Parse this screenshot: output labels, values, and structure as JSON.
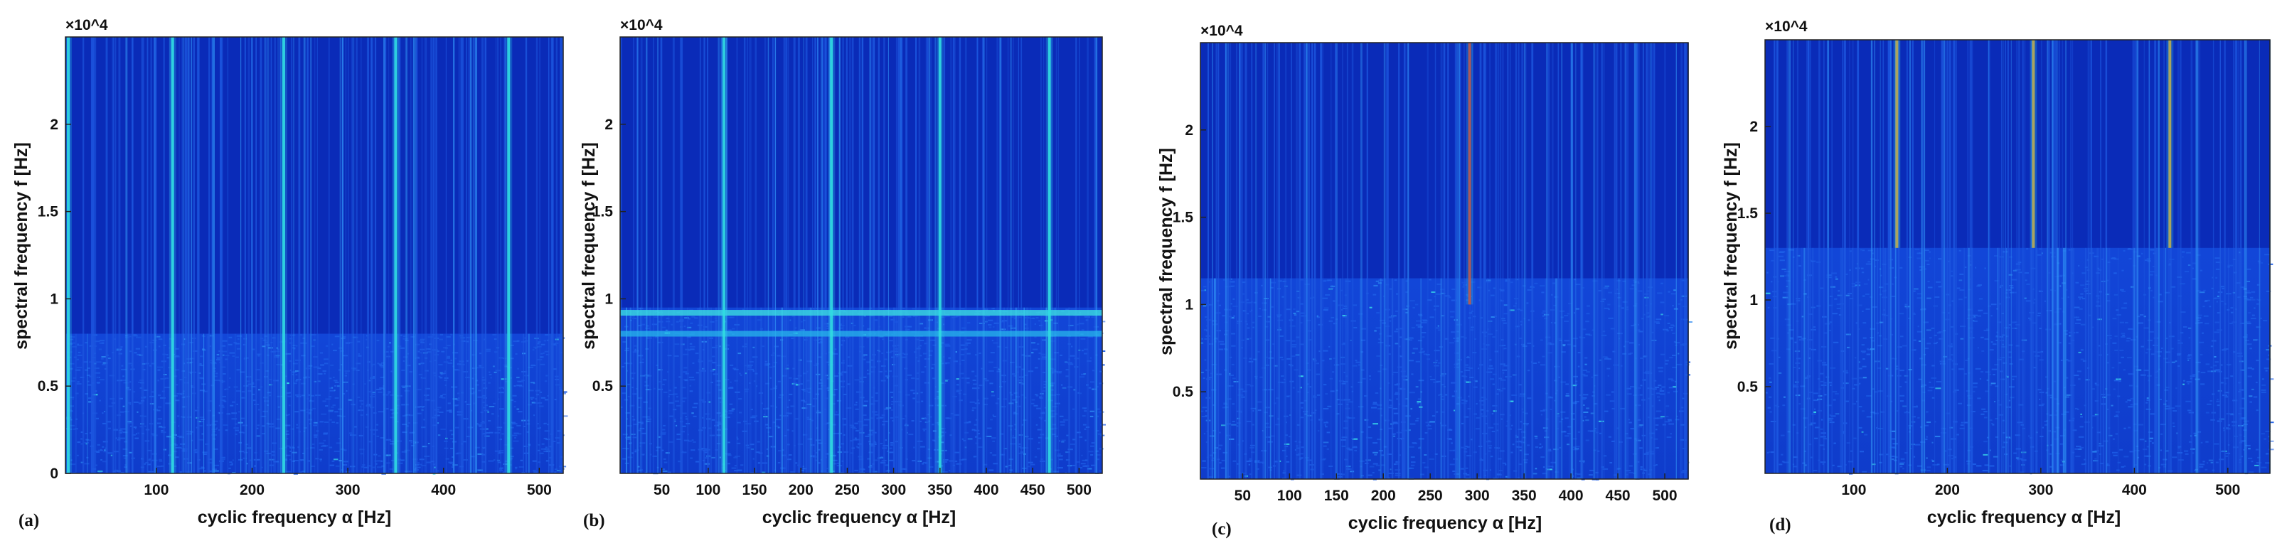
{
  "chart_data": [
    {
      "type": "heatmap",
      "panel_label": "(a)",
      "xlabel": "cyclic frequency α [Hz]",
      "ylabel": "spectral frequency f [Hz]",
      "y_exponent": "×10^4",
      "xlim": [
        5,
        525
      ],
      "ylim": [
        0,
        25000
      ],
      "xticks": [
        100,
        200,
        300,
        400,
        500
      ],
      "xtick_labels": [
        "100",
        "200",
        "300",
        "400",
        "500"
      ],
      "yticks": [
        0,
        5000,
        10000,
        15000,
        20000
      ],
      "ytick_labels": [
        "0",
        "0.5",
        "1",
        "1.5",
        "2"
      ],
      "colormap": "jet",
      "strong_lines_hz": [
        8,
        117,
        233,
        350,
        468
      ],
      "strong_line_color": "#31e0e0",
      "dense_band_f_hz": [
        0,
        8000
      ]
    },
    {
      "type": "heatmap",
      "panel_label": "(b)",
      "xlabel": "cyclic frequency α [Hz]",
      "ylabel": "spectral frequency f [Hz]",
      "y_exponent": "×10^4",
      "xlim": [
        5,
        525
      ],
      "ylim": [
        0,
        25000
      ],
      "xticks": [
        50,
        100,
        150,
        200,
        250,
        300,
        350,
        400,
        450,
        500
      ],
      "xtick_labels": [
        "50",
        "100",
        "150",
        "200",
        "250",
        "300",
        "350",
        "400",
        "450",
        "500"
      ],
      "yticks": [
        5000,
        10000,
        15000,
        20000
      ],
      "ytick_labels": [
        "0.5",
        "1",
        "1.5",
        "2"
      ],
      "colormap": "jet",
      "strong_lines_hz": [
        117,
        233,
        350,
        468
      ],
      "strong_line_color": "#31e0e0",
      "horizontal_bands_f_hz": [
        9200,
        8000
      ],
      "dense_band_f_hz": [
        0,
        9500
      ]
    },
    {
      "type": "heatmap",
      "panel_label": "(c)",
      "xlabel": "cyclic frequency α [Hz]",
      "ylabel": "spectral frequency f [Hz]",
      "y_exponent": "×10^4",
      "xlim": [
        5,
        525
      ],
      "ylim": [
        0,
        25000
      ],
      "xticks": [
        50,
        100,
        150,
        200,
        250,
        300,
        350,
        400,
        450,
        500
      ],
      "xtick_labels": [
        "50",
        "100",
        "150",
        "200",
        "250",
        "300",
        "350",
        "400",
        "450",
        "500"
      ],
      "yticks": [
        5000,
        10000,
        15000,
        20000
      ],
      "ytick_labels": [
        "0.5",
        "1",
        "1.5",
        "2"
      ],
      "colormap": "jet",
      "strong_lines_hz": [
        292
      ],
      "strong_line_color": "#e8321e",
      "strong_line_f_range_hz": [
        10000,
        25000
      ],
      "dense_band_f_hz": [
        0,
        11500
      ]
    },
    {
      "type": "heatmap",
      "panel_label": "(d)",
      "xlabel": "cyclic frequency α [Hz]",
      "ylabel": "spectral frequency f [Hz]",
      "y_exponent": "×10^4",
      "xlim": [
        5,
        545
      ],
      "ylim": [
        0,
        25000
      ],
      "xticks": [
        100,
        200,
        300,
        400,
        500
      ],
      "xtick_labels": [
        "100",
        "200",
        "300",
        "400",
        "500"
      ],
      "yticks": [
        5000,
        10000,
        15000,
        20000
      ],
      "ytick_labels": [
        "0.5",
        "1",
        "1.5",
        "2"
      ],
      "colormap": "jet",
      "strong_lines_hz": [
        146,
        292,
        438
      ],
      "strong_line_color": "#e8a020",
      "strong_line_f_range_hz": [
        13000,
        25000
      ],
      "dense_band_f_hz": [
        0,
        13000
      ]
    }
  ]
}
